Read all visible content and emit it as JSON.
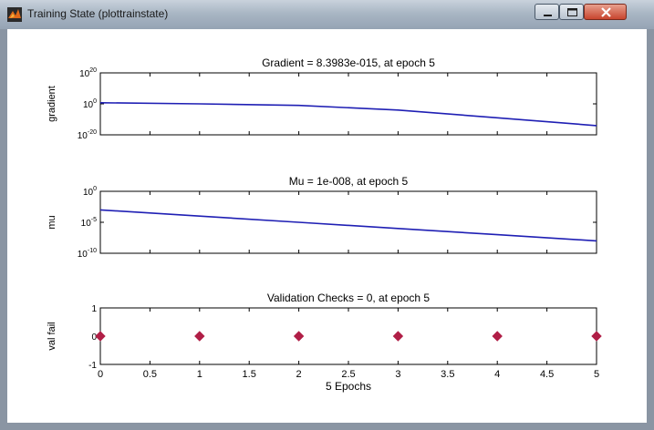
{
  "window": {
    "title": "Training State (plottrainstate)",
    "icon": "matlab-icon",
    "buttons": [
      "minimize-icon",
      "maximize-icon",
      "close-icon"
    ]
  },
  "chart_data": [
    {
      "type": "line",
      "title": "Gradient = 8.3983e-015, at epoch 5",
      "ylabel": "gradient",
      "xlabel": "",
      "yscale": "log",
      "ylim": [
        1e-20,
        1e+20
      ],
      "xlim": [
        0,
        5
      ],
      "yticks": [
        "10^20",
        "10^0",
        "10^-20"
      ],
      "x": [
        0,
        1,
        2,
        3,
        4,
        5
      ],
      "y": [
        5.0,
        1.0,
        0.1,
        0.0001,
        1e-09,
        8.3983e-15
      ],
      "color": "#1f1fb4"
    },
    {
      "type": "line",
      "title": "Mu = 1e-008, at epoch 5",
      "ylabel": "mu",
      "xlabel": "",
      "yscale": "log",
      "ylim": [
        1e-10,
        1.0
      ],
      "xlim": [
        0,
        5
      ],
      "yticks": [
        "10^0",
        "10^-5",
        "10^-10"
      ],
      "x": [
        0,
        1,
        2,
        3,
        4,
        5
      ],
      "y": [
        0.001,
        0.0001,
        1e-05,
        1e-06,
        1e-07,
        1e-08
      ],
      "color": "#1f1fb4"
    },
    {
      "type": "scatter",
      "title": "Validation Checks = 0, at epoch 5",
      "ylabel": "val fail",
      "xlabel": "5 Epochs",
      "ylim": [
        -1,
        1
      ],
      "xlim": [
        0,
        5
      ],
      "yticks": [
        "1",
        "0",
        "-1"
      ],
      "xticks": [
        "0",
        "0.5",
        "1",
        "1.5",
        "2",
        "2.5",
        "3",
        "3.5",
        "4",
        "4.5",
        "5"
      ],
      "x": [
        0,
        1,
        2,
        3,
        4,
        5
      ],
      "y": [
        0,
        0,
        0,
        0,
        0,
        0
      ],
      "color": "#b01e46"
    }
  ]
}
